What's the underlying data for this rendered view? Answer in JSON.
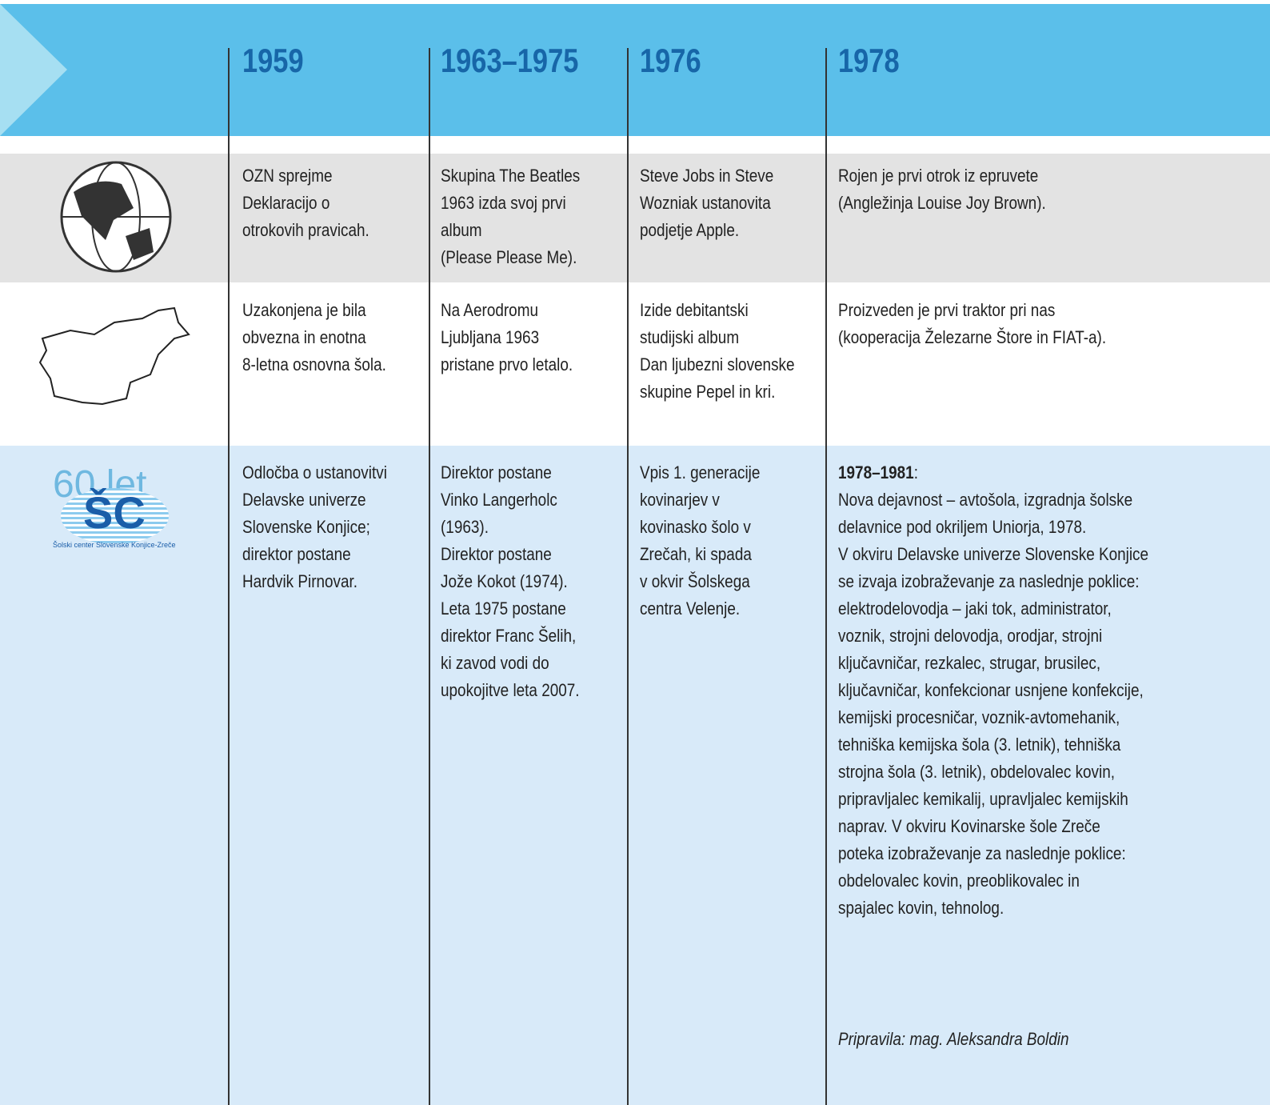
{
  "columns": [
    "1959",
    "1963–1975",
    "1976",
    "1978"
  ],
  "rows": [
    {
      "icon": "globe",
      "cells": [
        [
          "OZN sprejme",
          "Deklaracijo o",
          "otrokovih pravicah."
        ],
        [
          "Skupina The Beatles",
          "1963 izda svoj prvi",
          "album",
          "(Please Please Me)."
        ],
        [
          "Steve Jobs in Steve",
          "Wozniak ustanovita",
          "podjetje Apple."
        ],
        [
          "Rojen je prvi otrok iz epruvete",
          "(Angležinja Louise Joy Brown)."
        ]
      ]
    },
    {
      "icon": "slovenia",
      "cells": [
        [
          "Uzakonjena je bila",
          "obvezna in enotna",
          "8-letna osnovna šola."
        ],
        [
          "Na Aerodromu",
          "Ljubljana 1963",
          "pristane prvo letalo."
        ],
        [
          "Izide debitantski",
          "studijski album",
          "Dan ljubezni slovenske",
          "skupine Pepel in kri."
        ],
        [
          "Proizveden je prvi traktor pri nas",
          "(kooperacija Železarne Štore in FIAT-a)."
        ]
      ]
    },
    {
      "icon": "school",
      "cells": [
        [
          "Odločba o ustanovitvi",
          "Delavske univerze",
          "Slovenske Konjice;",
          "direktor postane",
          "Hardvik Pirnovar."
        ],
        [
          "Direktor postane",
          "Vinko Langerholc",
          "(1963).",
          "Direktor postane",
          "Jože Kokot (1974).",
          "Leta 1975 postane",
          "direktor Franc Šelih,",
          "ki zavod vodi do",
          "upokojitve leta 2007."
        ],
        [
          "Vpis 1. generacije",
          "kovinarjev v",
          "kovinasko šolo v",
          "Zrečah, ki spada",
          "v okvir Šolskega",
          "centra Velenje."
        ],
        [
          "Nova dejavnost – avtošola, izgradnja šolske",
          "delavnice pod okriljem Uniorja, 1978.",
          "V okviru Delavske univerze Slovenske Konjice",
          "se izvaja izobraževanje za naslednje poklice:",
          "elektrodelovodja – jaki tok, administrator,",
          "voznik, strojni delovodja, orodjar, strojni",
          "ključavničar, rezkalec, strugar, brusilec,",
          "ključavničar, konfekcionar usnjene konfekcije,",
          "kemijski procesničar, voznik-avtomehanik,",
          "tehniška kemijska šola (3. letnik), tehniška",
          "strojna šola (3. letnik), obdelovalec kovin,",
          "pripravljalec kemikalij, upravljalec kemijskih",
          "naprav. V okviru Kovinarske šole Zreče",
          "poteka izobraževanje za naslednje poklice:",
          "obdelovalec kovin, preoblikovalec in",
          "spajalec kovin, tehnolog."
        ]
      ]
    }
  ],
  "last_cell_heading": "1978–1981",
  "last_cell_heading_suffix": ":",
  "logo": {
    "years": "60 let",
    "initials": "ŠC",
    "name": "Šolski center Slovenske Konjice-Zreče"
  },
  "signature": "Pripravila: mag. Aleksandra Boldin"
}
